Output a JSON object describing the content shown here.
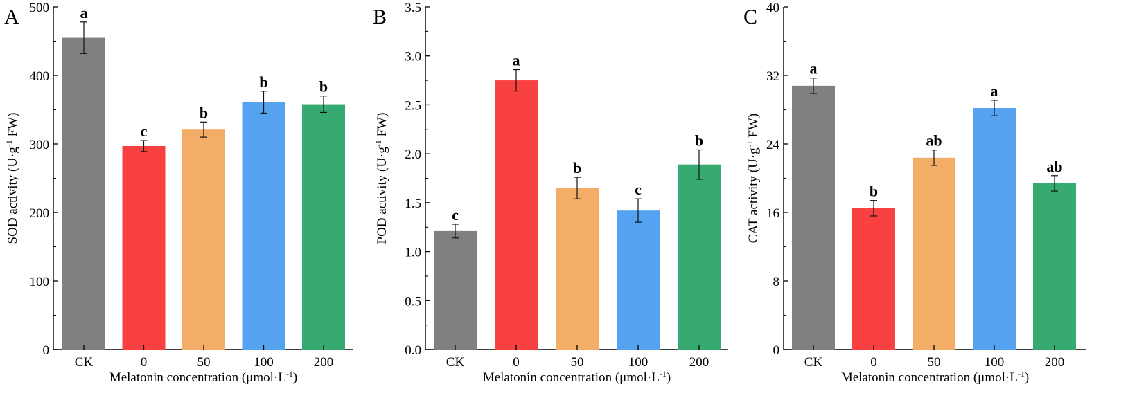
{
  "chart_data": [
    {
      "type": "bar",
      "panel_label": "A",
      "categories": [
        "CK",
        "0",
        "50",
        "100",
        "200"
      ],
      "values": [
        455,
        297,
        321,
        361,
        358
      ],
      "errors": [
        23,
        8,
        11,
        16,
        12
      ],
      "significance": [
        "a",
        "c",
        "b",
        "b",
        "b"
      ],
      "colors": [
        "#808080",
        "#f94141",
        "#f3ad66",
        "#55a2f0",
        "#36aa70"
      ],
      "ylim": [
        0,
        500
      ],
      "yticks": [
        0,
        100,
        200,
        300,
        400,
        500
      ],
      "ytick_labels": [
        "0",
        "100",
        "200",
        "300",
        "400",
        "500"
      ],
      "ylabel": {
        "pre": "SOD activity (U·g",
        "sup": "-1",
        "post": " FW)"
      },
      "xlabel": {
        "pre": "Melatonin concentration (μmol·L",
        "sup": "-1",
        "post": ")"
      }
    },
    {
      "type": "bar",
      "panel_label": "B",
      "categories": [
        "CK",
        "0",
        "50",
        "100",
        "200"
      ],
      "values": [
        1.21,
        2.75,
        1.65,
        1.42,
        1.89
      ],
      "errors": [
        0.07,
        0.11,
        0.11,
        0.12,
        0.15
      ],
      "significance": [
        "c",
        "a",
        "b",
        "c",
        "b"
      ],
      "colors": [
        "#808080",
        "#f94141",
        "#f3ad66",
        "#55a2f0",
        "#36aa70"
      ],
      "ylim": [
        0,
        3.5
      ],
      "yticks": [
        0,
        0.5,
        1.0,
        1.5,
        2.0,
        2.5,
        3.0,
        3.5
      ],
      "ytick_labels": [
        "0.0",
        "0.5",
        "1.0",
        "1.5",
        "2.0",
        "2.5",
        "3.0",
        "3.5"
      ],
      "ylabel": {
        "pre": "POD activity (U·g",
        "sup": "-1",
        "post": " FW)"
      },
      "xlabel": {
        "pre": "Melatonin concentration (μmol·L",
        "sup": "-1",
        "post": ")"
      }
    },
    {
      "type": "bar",
      "panel_label": "C",
      "categories": [
        "CK",
        "0",
        "50",
        "100",
        "200"
      ],
      "values": [
        30.8,
        16.5,
        22.4,
        28.2,
        19.4
      ],
      "errors": [
        0.9,
        0.9,
        0.9,
        0.9,
        0.9
      ],
      "significance": [
        "a",
        "b",
        "ab",
        "a",
        "ab"
      ],
      "colors": [
        "#808080",
        "#f94141",
        "#f3ad66",
        "#55a2f0",
        "#36aa70"
      ],
      "ylim": [
        0,
        40
      ],
      "yticks": [
        0,
        8,
        16,
        24,
        32,
        40
      ],
      "ytick_labels": [
        "0",
        "8",
        "16",
        "24",
        "32",
        "40"
      ],
      "ylabel": {
        "pre": "CAT activity (U·g",
        "sup": "-1",
        "post": " FW)"
      },
      "xlabel": {
        "pre": "Melatonin concentration (μmol·L",
        "sup": "-1",
        "post": ")"
      }
    }
  ]
}
